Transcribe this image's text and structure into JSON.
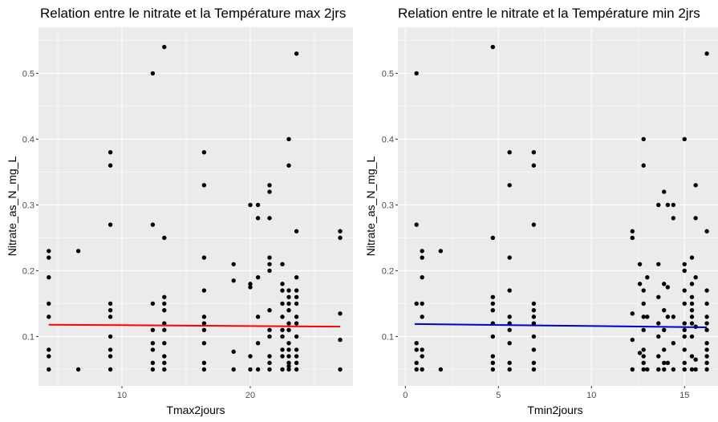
{
  "chart_data": [
    {
      "type": "scatter",
      "title": "Relation entre le nitrate et la Température max 2jrs",
      "xlabel": "Tmax2jours",
      "ylabel": "Nitrate_as_N_mg_L",
      "xlim": [
        3.5,
        28
      ],
      "ylim": [
        0.025,
        0.57
      ],
      "xticks": [
        10,
        20
      ],
      "yticks": [
        0.1,
        0.2,
        0.3,
        0.4,
        0.5
      ],
      "xtick_labels": [
        "10",
        "20"
      ],
      "ytick_labels": [
        "0.1",
        "0.2",
        "0.3",
        "0.4",
        "0.5"
      ],
      "grid": true,
      "fit_line": {
        "color": "#ff0000",
        "x": [
          4.3,
          27
        ],
        "y": [
          0.118,
          0.115
        ]
      },
      "points": [
        [
          4.3,
          0.05
        ],
        [
          4.3,
          0.07
        ],
        [
          4.3,
          0.08
        ],
        [
          4.3,
          0.13
        ],
        [
          4.3,
          0.15
        ],
        [
          4.3,
          0.19
        ],
        [
          4.3,
          0.22
        ],
        [
          4.3,
          0.23
        ],
        [
          6.6,
          0.05
        ],
        [
          6.6,
          0.23
        ],
        [
          9.1,
          0.05
        ],
        [
          9.1,
          0.07
        ],
        [
          9.1,
          0.08
        ],
        [
          9.1,
          0.1
        ],
        [
          9.1,
          0.13
        ],
        [
          9.1,
          0.14
        ],
        [
          9.1,
          0.15
        ],
        [
          9.1,
          0.27
        ],
        [
          9.1,
          0.36
        ],
        [
          9.1,
          0.38
        ],
        [
          12.4,
          0.05
        ],
        [
          12.4,
          0.06
        ],
        [
          12.4,
          0.08
        ],
        [
          12.4,
          0.09
        ],
        [
          12.4,
          0.11
        ],
        [
          12.4,
          0.15
        ],
        [
          12.4,
          0.27
        ],
        [
          12.4,
          0.5
        ],
        [
          13.3,
          0.05
        ],
        [
          13.3,
          0.06
        ],
        [
          13.3,
          0.07
        ],
        [
          13.3,
          0.09
        ],
        [
          13.3,
          0.11
        ],
        [
          13.3,
          0.12
        ],
        [
          13.3,
          0.14
        ],
        [
          13.3,
          0.15
        ],
        [
          13.3,
          0.16
        ],
        [
          13.3,
          0.25
        ],
        [
          13.3,
          0.54
        ],
        [
          16.4,
          0.05
        ],
        [
          16.4,
          0.06
        ],
        [
          16.4,
          0.09
        ],
        [
          16.4,
          0.11
        ],
        [
          16.4,
          0.12
        ],
        [
          16.4,
          0.13
        ],
        [
          16.4,
          0.17
        ],
        [
          16.4,
          0.22
        ],
        [
          16.4,
          0.33
        ],
        [
          16.4,
          0.38
        ],
        [
          18.7,
          0.05
        ],
        [
          18.7,
          0.077
        ],
        [
          18.7,
          0.185
        ],
        [
          18.7,
          0.21
        ],
        [
          20.0,
          0.05
        ],
        [
          20.0,
          0.07
        ],
        [
          20.0,
          0.175
        ],
        [
          20.0,
          0.18
        ],
        [
          20.0,
          0.3
        ],
        [
          20.6,
          0.05
        ],
        [
          20.6,
          0.09
        ],
        [
          20.6,
          0.13
        ],
        [
          20.6,
          0.19
        ],
        [
          20.6,
          0.28
        ],
        [
          20.6,
          0.3
        ],
        [
          21.5,
          0.05
        ],
        [
          21.5,
          0.06
        ],
        [
          21.5,
          0.07
        ],
        [
          21.5,
          0.1
        ],
        [
          21.5,
          0.11
        ],
        [
          21.5,
          0.14
        ],
        [
          21.5,
          0.2
        ],
        [
          21.5,
          0.21
        ],
        [
          21.5,
          0.22
        ],
        [
          21.5,
          0.28
        ],
        [
          21.5,
          0.32
        ],
        [
          21.5,
          0.33
        ],
        [
          22.5,
          0.05
        ],
        [
          22.5,
          0.07
        ],
        [
          22.5,
          0.08
        ],
        [
          22.5,
          0.1
        ],
        [
          22.5,
          0.11
        ],
        [
          22.5,
          0.13
        ],
        [
          22.5,
          0.15
        ],
        [
          22.5,
          0.17
        ],
        [
          22.5,
          0.18
        ],
        [
          22.5,
          0.21
        ],
        [
          23.0,
          0.05
        ],
        [
          23.0,
          0.055
        ],
        [
          23.0,
          0.06
        ],
        [
          23.0,
          0.07
        ],
        [
          23.0,
          0.08
        ],
        [
          23.0,
          0.09
        ],
        [
          23.0,
          0.11
        ],
        [
          23.0,
          0.12
        ],
        [
          23.0,
          0.14
        ],
        [
          23.0,
          0.15
        ],
        [
          23.0,
          0.16
        ],
        [
          23.0,
          0.17
        ],
        [
          23.0,
          0.36
        ],
        [
          23.0,
          0.4
        ],
        [
          23.6,
          0.05
        ],
        [
          23.6,
          0.06
        ],
        [
          23.6,
          0.07
        ],
        [
          23.6,
          0.08
        ],
        [
          23.6,
          0.1
        ],
        [
          23.6,
          0.12
        ],
        [
          23.6,
          0.13
        ],
        [
          23.6,
          0.15
        ],
        [
          23.6,
          0.16
        ],
        [
          23.6,
          0.17
        ],
        [
          23.6,
          0.19
        ],
        [
          23.6,
          0.26
        ],
        [
          23.6,
          0.53
        ],
        [
          27.0,
          0.05
        ],
        [
          27.0,
          0.095
        ],
        [
          27.0,
          0.135
        ],
        [
          27.0,
          0.25
        ],
        [
          27.0,
          0.26
        ]
      ]
    },
    {
      "type": "scatter",
      "title": "Relation entre le nitrate et la Température min 2jrs",
      "xlabel": "Tmin2jours",
      "ylabel": "Nitrate_as_N_mg_L",
      "xlim": [
        -0.4,
        16.8
      ],
      "ylim": [
        0.025,
        0.57
      ],
      "xticks": [
        0,
        5,
        10,
        15
      ],
      "yticks": [
        0.1,
        0.2,
        0.3,
        0.4,
        0.5
      ],
      "xtick_labels": [
        "0",
        "5",
        "10",
        "15"
      ],
      "ytick_labels": [
        "0.1",
        "0.2",
        "0.3",
        "0.4",
        "0.5"
      ],
      "grid": true,
      "fit_line": {
        "color": "#0000cc",
        "x": [
          0.5,
          16.2
        ],
        "y": [
          0.119,
          0.114
        ]
      },
      "points": [
        [
          0.6,
          0.05
        ],
        [
          0.6,
          0.06
        ],
        [
          0.6,
          0.08
        ],
        [
          0.6,
          0.09
        ],
        [
          0.6,
          0.15
        ],
        [
          0.6,
          0.27
        ],
        [
          0.6,
          0.5
        ],
        [
          0.9,
          0.05
        ],
        [
          0.9,
          0.07
        ],
        [
          0.9,
          0.08
        ],
        [
          0.9,
          0.13
        ],
        [
          0.9,
          0.15
        ],
        [
          0.9,
          0.19
        ],
        [
          0.9,
          0.22
        ],
        [
          0.9,
          0.23
        ],
        [
          1.9,
          0.05
        ],
        [
          1.9,
          0.23
        ],
        [
          4.7,
          0.05
        ],
        [
          4.7,
          0.06
        ],
        [
          4.7,
          0.07
        ],
        [
          4.7,
          0.1
        ],
        [
          4.7,
          0.12
        ],
        [
          4.7,
          0.14
        ],
        [
          4.7,
          0.15
        ],
        [
          4.7,
          0.16
        ],
        [
          4.7,
          0.25
        ],
        [
          4.7,
          0.54
        ],
        [
          5.6,
          0.05
        ],
        [
          5.6,
          0.06
        ],
        [
          5.6,
          0.09
        ],
        [
          5.6,
          0.11
        ],
        [
          5.6,
          0.12
        ],
        [
          5.6,
          0.13
        ],
        [
          5.6,
          0.17
        ],
        [
          5.6,
          0.22
        ],
        [
          5.6,
          0.33
        ],
        [
          5.6,
          0.38
        ],
        [
          6.9,
          0.05
        ],
        [
          6.9,
          0.06
        ],
        [
          6.9,
          0.08
        ],
        [
          6.9,
          0.1
        ],
        [
          6.9,
          0.12
        ],
        [
          6.9,
          0.13
        ],
        [
          6.9,
          0.14
        ],
        [
          6.9,
          0.15
        ],
        [
          6.9,
          0.27
        ],
        [
          6.9,
          0.36
        ],
        [
          6.9,
          0.38
        ],
        [
          12.2,
          0.05
        ],
        [
          12.2,
          0.095
        ],
        [
          12.2,
          0.135
        ],
        [
          12.2,
          0.25
        ],
        [
          12.2,
          0.26
        ],
        [
          12.6,
          0.075
        ],
        [
          12.6,
          0.18
        ],
        [
          12.6,
          0.21
        ],
        [
          12.8,
          0.05
        ],
        [
          12.8,
          0.06
        ],
        [
          12.8,
          0.07
        ],
        [
          12.8,
          0.08
        ],
        [
          12.8,
          0.11
        ],
        [
          12.8,
          0.13
        ],
        [
          12.8,
          0.15
        ],
        [
          12.8,
          0.17
        ],
        [
          12.8,
          0.36
        ],
        [
          12.8,
          0.4
        ],
        [
          13.0,
          0.05
        ],
        [
          13.0,
          0.13
        ],
        [
          13.0,
          0.19
        ],
        [
          13.6,
          0.05
        ],
        [
          13.6,
          0.07
        ],
        [
          13.6,
          0.1
        ],
        [
          13.6,
          0.12
        ],
        [
          13.6,
          0.16
        ],
        [
          13.6,
          0.21
        ],
        [
          13.6,
          0.3
        ],
        [
          13.9,
          0.05
        ],
        [
          13.9,
          0.06
        ],
        [
          13.9,
          0.08
        ],
        [
          13.9,
          0.11
        ],
        [
          13.9,
          0.14
        ],
        [
          13.9,
          0.18
        ],
        [
          13.9,
          0.32
        ],
        [
          14.1,
          0.06
        ],
        [
          14.1,
          0.13
        ],
        [
          14.1,
          0.175
        ],
        [
          14.1,
          0.3
        ],
        [
          14.4,
          0.05
        ],
        [
          14.4,
          0.09
        ],
        [
          14.4,
          0.13
        ],
        [
          14.4,
          0.28
        ],
        [
          14.4,
          0.3
        ],
        [
          15.0,
          0.05
        ],
        [
          15.0,
          0.06
        ],
        [
          15.0,
          0.08
        ],
        [
          15.0,
          0.1
        ],
        [
          15.0,
          0.11
        ],
        [
          15.0,
          0.12
        ],
        [
          15.0,
          0.15
        ],
        [
          15.0,
          0.17
        ],
        [
          15.0,
          0.2
        ],
        [
          15.0,
          0.21
        ],
        [
          15.0,
          0.4
        ],
        [
          15.4,
          0.05
        ],
        [
          15.4,
          0.07
        ],
        [
          15.4,
          0.1
        ],
        [
          15.4,
          0.12
        ],
        [
          15.4,
          0.13
        ],
        [
          15.4,
          0.14
        ],
        [
          15.4,
          0.15
        ],
        [
          15.4,
          0.16
        ],
        [
          15.4,
          0.18
        ],
        [
          15.4,
          0.22
        ],
        [
          15.6,
          0.05
        ],
        [
          15.6,
          0.065
        ],
        [
          15.6,
          0.115
        ],
        [
          15.6,
          0.19
        ],
        [
          15.6,
          0.28
        ],
        [
          15.6,
          0.33
        ],
        [
          16.2,
          0.05
        ],
        [
          16.2,
          0.06
        ],
        [
          16.2,
          0.07
        ],
        [
          16.2,
          0.08
        ],
        [
          16.2,
          0.09
        ],
        [
          16.2,
          0.11
        ],
        [
          16.2,
          0.12
        ],
        [
          16.2,
          0.13
        ],
        [
          16.2,
          0.15
        ],
        [
          16.2,
          0.17
        ],
        [
          16.2,
          0.26
        ],
        [
          16.2,
          0.53
        ]
      ]
    }
  ]
}
